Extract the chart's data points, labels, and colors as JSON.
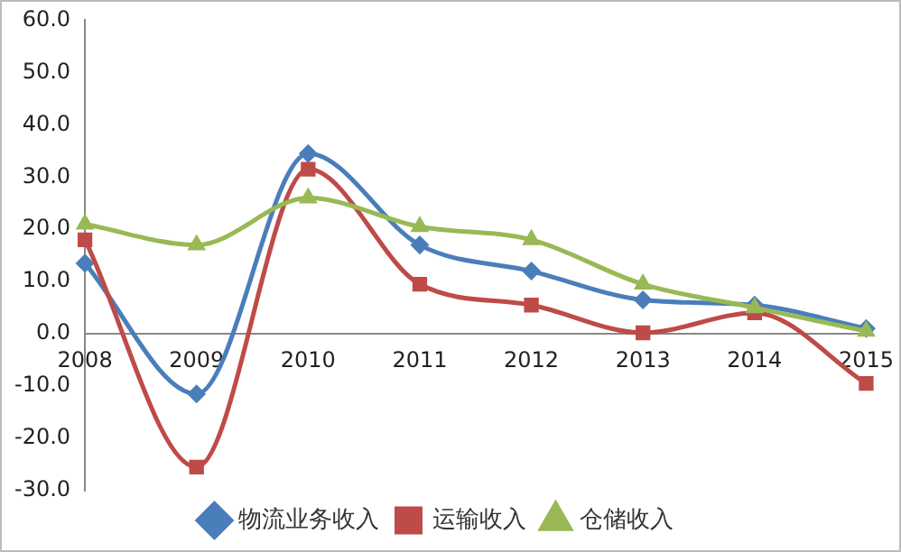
{
  "chart_data": {
    "type": "line",
    "categories": [
      "2008",
      "2009",
      "2010",
      "2011",
      "2012",
      "2013",
      "2014",
      "2015"
    ],
    "series": [
      {
        "name": "物流业务收入",
        "color": "#4a7ebb",
        "marker": "diamond",
        "values": [
          13.5,
          -11.5,
          34.5,
          17,
          12,
          6.5,
          5.5,
          1
        ]
      },
      {
        "name": "运输收入",
        "color": "#be4b48",
        "marker": "square",
        "values": [
          18,
          -25.5,
          31.5,
          9.5,
          5.5,
          0.2,
          4,
          -9.5
        ]
      },
      {
        "name": "仓储收入",
        "color": "#98b954",
        "marker": "triangle",
        "values": [
          21,
          17,
          26,
          20.5,
          18,
          9.5,
          5,
          0.5
        ]
      }
    ],
    "ylim": [
      -30,
      60
    ],
    "yticks": [
      {
        "value": -30,
        "label": "-30.0"
      },
      {
        "value": -20,
        "label": "-20.0"
      },
      {
        "value": -10,
        "label": "-10.0"
      },
      {
        "value": 0,
        "label": "0.0"
      },
      {
        "value": 10,
        "label": "10.0"
      },
      {
        "value": 20,
        "label": "20.0"
      },
      {
        "value": 30,
        "label": "30.0"
      },
      {
        "value": 40,
        "label": "40.0"
      },
      {
        "value": 50,
        "label": "50.0"
      },
      {
        "value": 60,
        "label": "60.0"
      }
    ],
    "grid": false,
    "legend": "bottom"
  }
}
